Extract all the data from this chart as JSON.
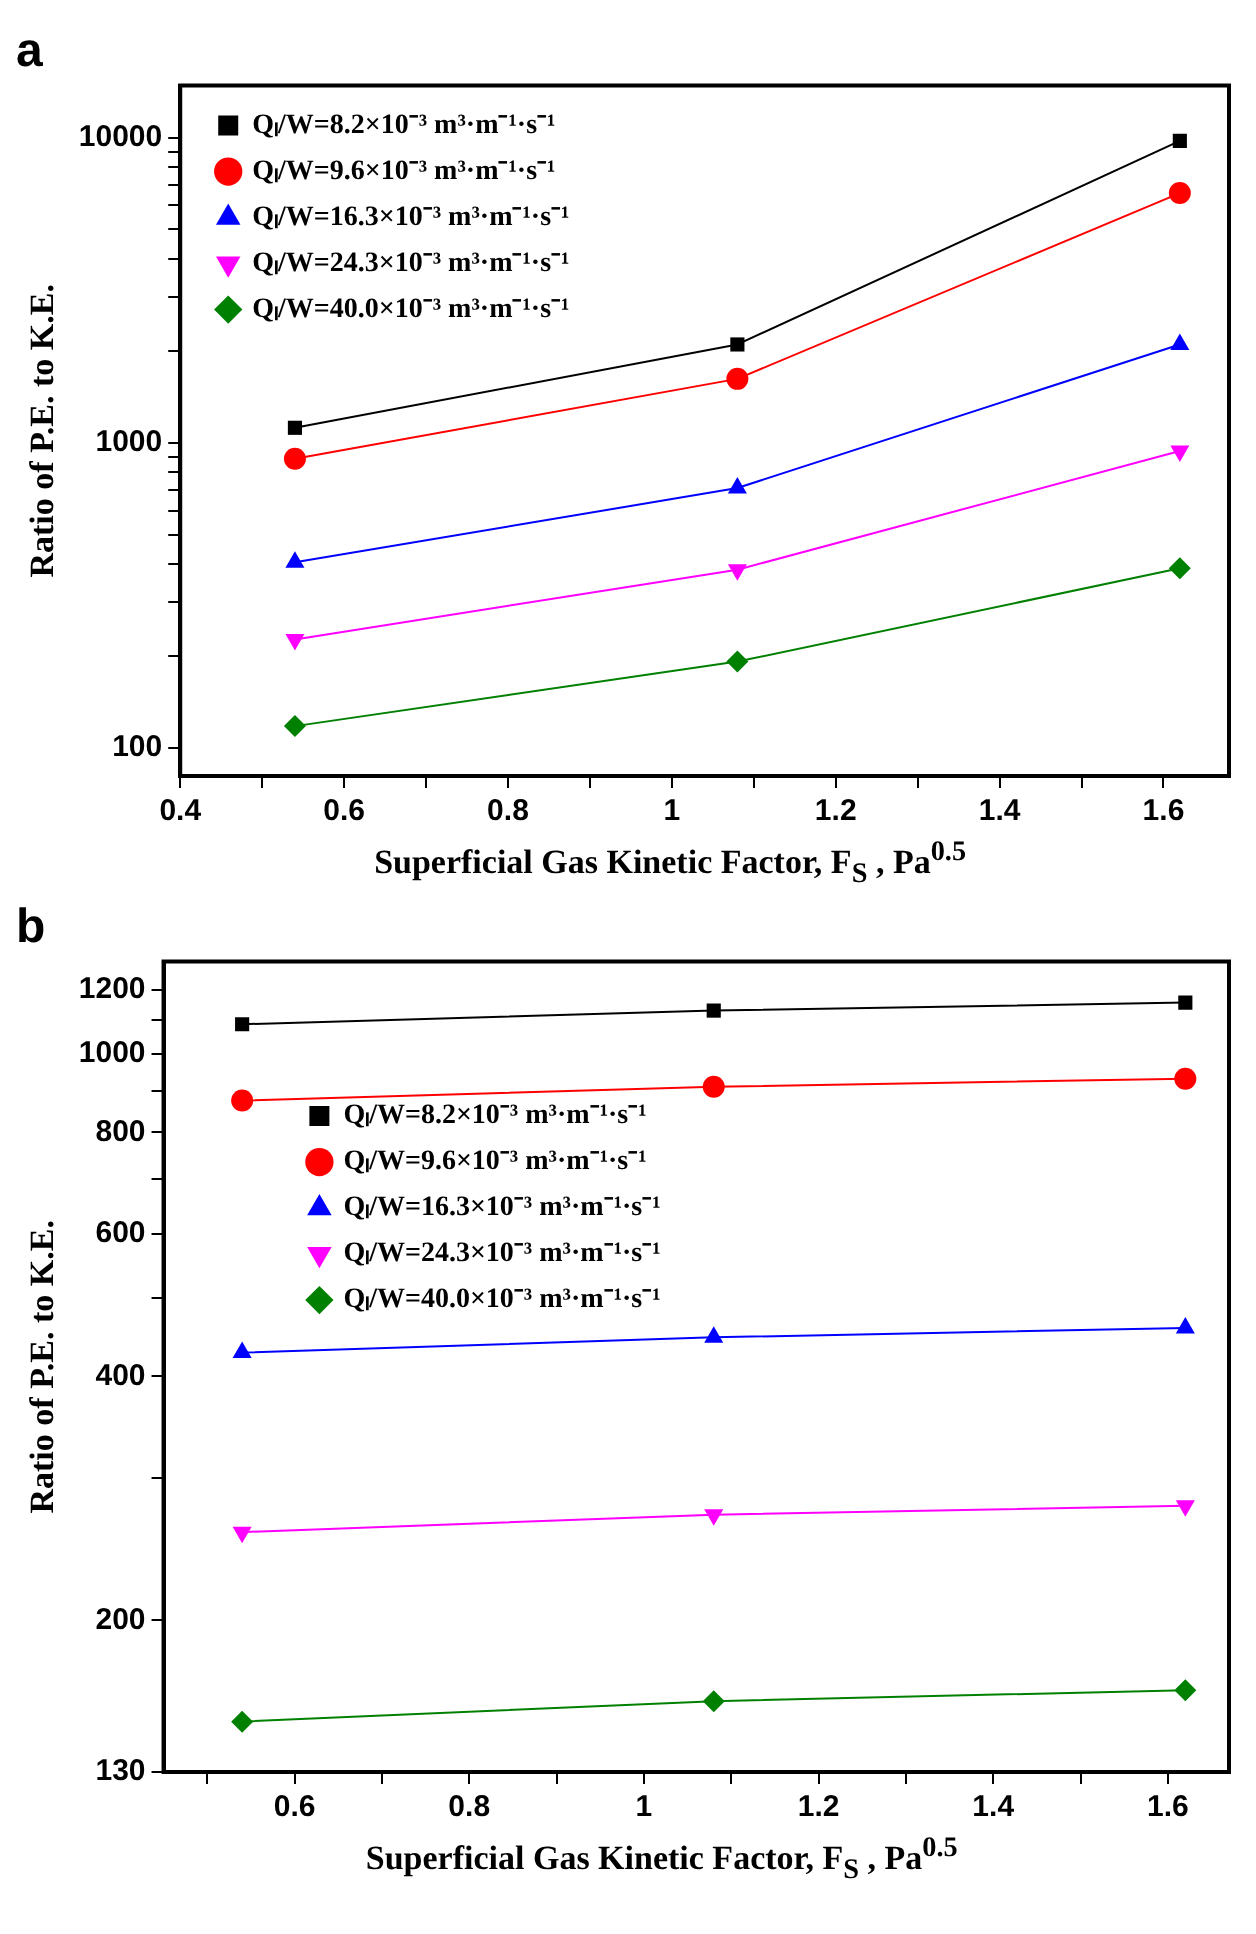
{
  "chart_data": [
    {
      "type": "line",
      "title": "a",
      "xlabel": "Superficial Gas Kinetic Factor, F$_{S}$ , Pa$^{0.5}$",
      "ylabel": "Ratio of P.E. to K.E.",
      "log": "y",
      "grid": false,
      "legend": "top left",
      "line_style": "solid",
      "x": [
        0.54,
        1.08,
        1.62
      ],
      "xlim": [
        0.4,
        1.68
      ],
      "xticks": [
        0.4,
        {
          "value": 0.5,
          "label": null
        },
        0.6,
        {
          "value": 0.7,
          "label": null
        },
        0.8,
        {
          "value": 0.9,
          "label": null
        },
        1.0,
        {
          "value": 1.1,
          "label": null
        },
        1.2,
        {
          "value": 1.3,
          "label": null
        },
        1.4,
        {
          "value": 1.5,
          "label": null
        },
        1.6
      ],
      "ylim": [
        81,
        14800
      ],
      "yticks": [
        100,
        {
          "value": 200,
          "label": null
        },
        {
          "value": 300,
          "label": null
        },
        {
          "value": 400,
          "label": null
        },
        {
          "value": 500,
          "label": null
        },
        {
          "value": 600,
          "label": null
        },
        {
          "value": 700,
          "label": null
        },
        {
          "value": 800,
          "label": null
        },
        {
          "value": 900,
          "label": null
        },
        1000,
        {
          "value": 2000,
          "label": null
        },
        {
          "value": 3000,
          "label": null
        },
        {
          "value": 4000,
          "label": null
        },
        {
          "value": 5000,
          "label": null
        },
        {
          "value": 6000,
          "label": null
        },
        {
          "value": 7000,
          "label": null
        },
        {
          "value": 8000,
          "label": null
        },
        {
          "value": 9000,
          "label": null
        },
        10000
      ],
      "series": [
        {
          "name": "Qₗ/W=8.2×10⁻³ m³·m⁻¹·s⁻¹",
          "color": "#000000",
          "marker": "square",
          "values": [
            1120,
            2100,
            9750
          ]
        },
        {
          "name": "Qₗ/W=9.6×10⁻³ m³·m⁻¹·s⁻¹",
          "color": "#ff0000",
          "marker": "circle",
          "values": [
            887,
            1620,
            6580
          ]
        },
        {
          "name": "Qₗ/W=16.3×10⁻³ m³·m⁻¹·s⁻¹",
          "color": "#0000ff",
          "marker": "triangle",
          "values": [
            406,
            711,
            2100
          ]
        },
        {
          "name": "Qₗ/W=24.3×10⁻³ m³·m⁻¹·s⁻¹",
          "color": "#ff00ff",
          "marker": "triangle-down",
          "values": [
            227,
            384,
            940
          ]
        },
        {
          "name": "Qₗ/W=40.0×10⁻³ m³·m⁻¹·s⁻¹",
          "color": "#008000",
          "marker": "diamond",
          "values": [
            118,
            192,
            388
          ]
        }
      ]
    },
    {
      "type": "line",
      "title": "b",
      "xlabel": "Superficial Gas Kinetic Factor, F$_{S}$ , Pa$^{0.5}$",
      "ylabel": "Ratio of P.E. to K.E.",
      "log": "y",
      "grid": false,
      "legend": "left",
      "line_style": "solid",
      "x": [
        0.54,
        1.08,
        1.62
      ],
      "xlim": [
        0.45,
        1.67
      ],
      "xticks": [
        {
          "value": 0.5,
          "label": null
        },
        0.6,
        {
          "value": 0.7,
          "label": null
        },
        0.8,
        {
          "value": 0.9,
          "label": null
        },
        1.0,
        {
          "value": 1.1,
          "label": null
        },
        1.2,
        {
          "value": 1.3,
          "label": null
        },
        1.4,
        {
          "value": 1.5,
          "label": null
        },
        1.6
      ],
      "ylim": [
        130,
        1300
      ],
      "yticks": [
        130,
        200,
        {
          "value": 300,
          "label": null
        },
        400,
        {
          "value": 500,
          "label": null
        },
        600,
        {
          "value": 700,
          "label": null
        },
        800,
        {
          "value": 900,
          "label": null
        },
        1000,
        {
          "value": 1100,
          "label": null
        },
        1200
      ],
      "series": [
        {
          "name": "Qₗ/W=8.2×10⁻³ m³·m⁻¹·s⁻¹",
          "color": "#000000",
          "marker": "square",
          "values": [
            1088,
            1131,
            1157
          ]
        },
        {
          "name": "Qₗ/W=9.6×10⁻³ m³·m⁻¹·s⁻¹",
          "color": "#ff0000",
          "marker": "circle",
          "values": [
            876,
            911,
            932
          ]
        },
        {
          "name": "Qₗ/W=16.3×10⁻³ m³·m⁻¹·s⁻¹",
          "color": "#0000ff",
          "marker": "triangle",
          "values": [
            428,
            447,
            459
          ]
        },
        {
          "name": "Qₗ/W=24.3×10⁻³ m³·m⁻¹·s⁻¹",
          "color": "#ff00ff",
          "marker": "triangle-down",
          "values": [
            257,
            270,
            277
          ]
        },
        {
          "name": "Qₗ/W=40.0×10⁻³ m³·m⁻¹·s⁻¹",
          "color": "#008000",
          "marker": "diamond",
          "values": [
            150,
            159,
            164
          ]
        }
      ]
    }
  ]
}
